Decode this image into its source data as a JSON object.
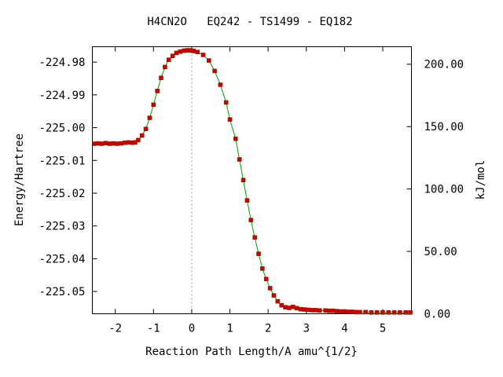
{
  "chart_data": {
    "type": "line",
    "title": "H4CN2O   EQ242 - TS1499 - EQ182",
    "xlabel": "Reaction Path Length/A amu^{1/2}",
    "ylabel": "Energy/Hartree",
    "y2label": "kJ/mol",
    "xlim": [
      -2.6,
      5.75
    ],
    "ylim": [
      -225.0568,
      -224.9753
    ],
    "y2lim": [
      0,
      214
    ],
    "x_ticks": [
      "-2",
      "-1",
      "0",
      "1",
      "2",
      "3",
      "4",
      "5"
    ],
    "x_tick_values": [
      -2,
      -1,
      0,
      1,
      2,
      3,
      4,
      5
    ],
    "y_ticks": [
      "-224.98",
      "-224.99",
      "-225.00",
      "-225.01",
      "-225.02",
      "-225.03",
      "-225.04",
      "-225.05"
    ],
    "y_tick_values": [
      -224.98,
      -224.99,
      -225.0,
      -225.01,
      -225.02,
      -225.03,
      -225.04,
      -225.05
    ],
    "y2_ticks": [
      "200.00",
      "150.00",
      "100.00",
      "50.00",
      "0.00"
    ],
    "y2_tick_values": [
      200,
      150,
      100,
      50,
      0
    ],
    "ts_line_x": 0,
    "line_color": "#00a000",
    "marker_color": "#cc0000",
    "series": [
      {
        "x": [
          -2.55,
          -2.45,
          -2.35,
          -2.25,
          -2.15,
          -2.05,
          -1.95,
          -1.85,
          -1.75,
          -1.65,
          -1.55,
          -1.48,
          -1.4,
          -1.3,
          -1.2,
          -1.1,
          -1.0,
          -0.9,
          -0.8,
          -0.7,
          -0.6,
          -0.5,
          -0.4,
          -0.3,
          -0.2,
          -0.12,
          -0.05,
          0.0,
          0.05,
          0.15,
          0.3,
          0.45,
          0.6,
          0.75,
          0.9,
          1.0,
          1.15,
          1.25,
          1.35,
          1.45,
          1.55,
          1.65,
          1.75,
          1.85,
          1.95,
          2.05,
          2.15,
          2.25,
          2.35,
          2.45,
          2.55,
          2.65,
          2.75,
          2.85,
          2.95,
          3.05,
          3.15,
          3.25,
          3.35,
          3.5,
          3.6,
          3.7,
          3.8,
          3.9,
          4.0,
          4.1,
          4.2,
          4.3,
          4.4,
          4.55,
          4.7,
          4.85,
          5.0,
          5.15,
          5.3,
          5.45,
          5.6,
          5.72
        ],
        "y": [
          -225.0049,
          -225.0048,
          -225.0049,
          -225.0047,
          -225.0049,
          -225.0048,
          -225.0049,
          -225.0048,
          -225.0046,
          -225.0045,
          -225.0046,
          -225.0045,
          -225.0038,
          -225.0024,
          -225.0004,
          -224.997,
          -224.993,
          -224.9888,
          -224.9848,
          -224.9815,
          -224.9793,
          -224.9781,
          -224.9772,
          -224.9768,
          -224.9765,
          -224.9764,
          -224.9764,
          -224.9765,
          -224.9766,
          -224.9769,
          -224.9778,
          -224.9795,
          -224.9827,
          -224.9869,
          -224.9923,
          -224.9975,
          -225.0034,
          -225.0097,
          -225.016,
          -225.0222,
          -225.0282,
          -225.0335,
          -225.0385,
          -225.043,
          -225.0462,
          -225.049,
          -225.0512,
          -225.053,
          -225.0542,
          -225.0548,
          -225.055,
          -225.0547,
          -225.0551,
          -225.0554,
          -225.0555,
          -225.0556,
          -225.0557,
          -225.0557,
          -225.0558,
          -225.0558,
          -225.0559,
          -225.0559,
          -225.056,
          -225.0561,
          -225.0561,
          -225.0562,
          -225.0562,
          -225.0563,
          -225.0563,
          -225.0563,
          -225.0564,
          -225.0564,
          -225.0564,
          -225.0564,
          -225.0564,
          -225.0564,
          -225.0564,
          -225.0564
        ]
      }
    ]
  }
}
